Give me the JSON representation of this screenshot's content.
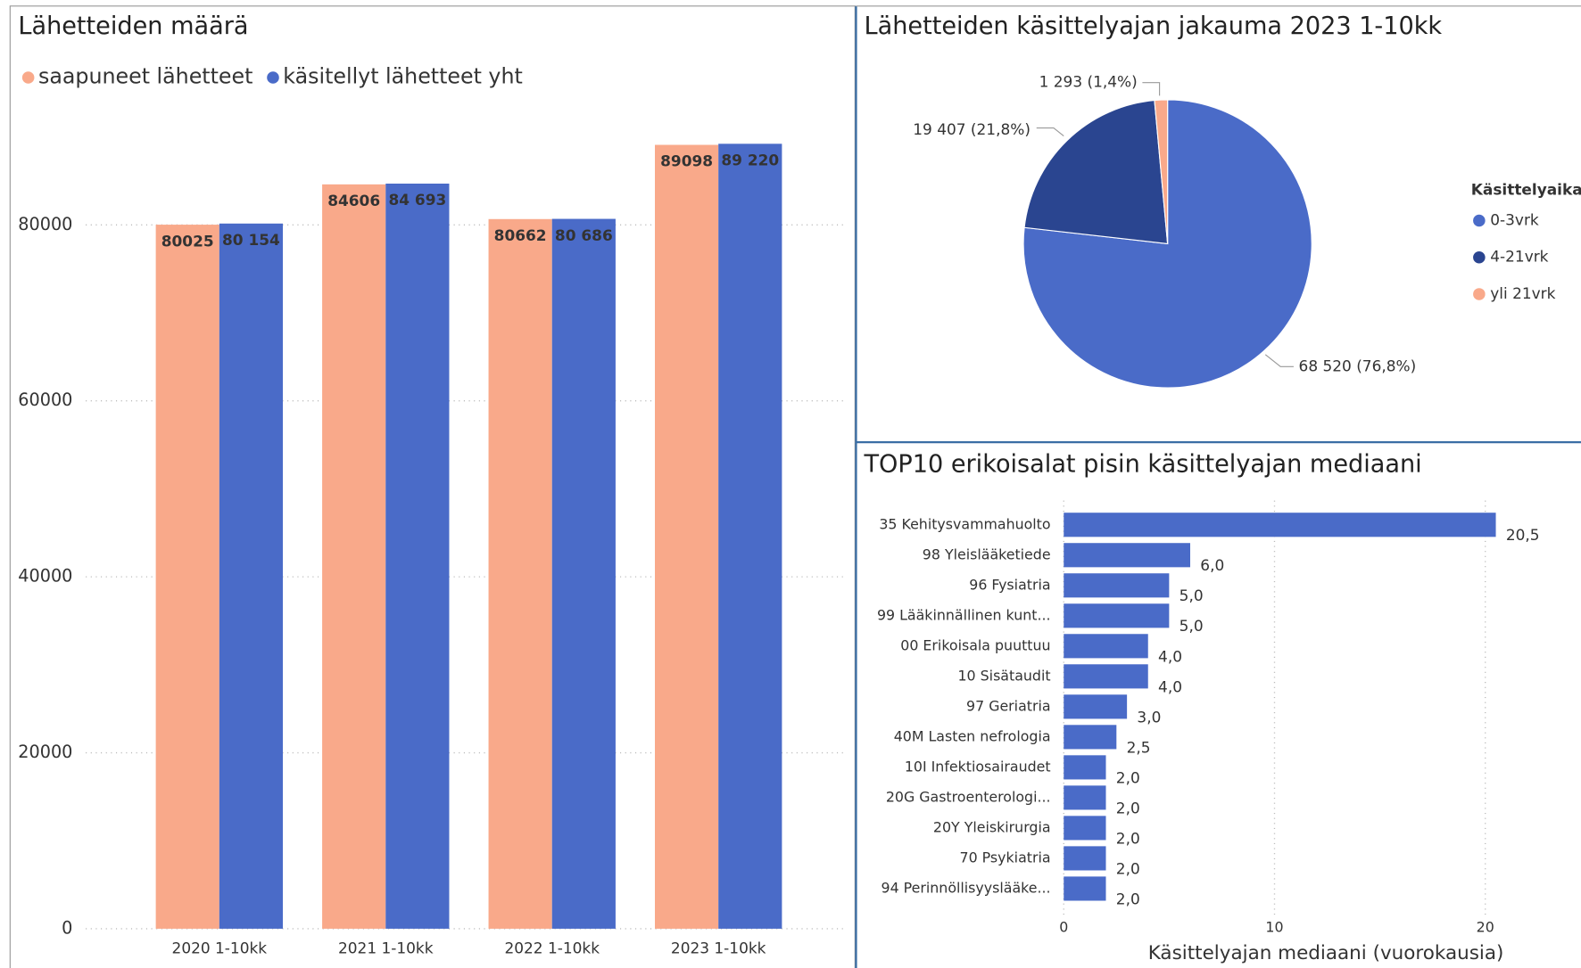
{
  "chart_data": [
    {
      "type": "bar",
      "title": "Lähetteiden määrä",
      "categories": [
        "2020 1-10kk",
        "2021 1-10kk",
        "2022 1-10kk",
        "2023 1-10kk"
      ],
      "series": [
        {
          "name": "saapuneet lähetteet",
          "color": "#f9a98a",
          "values": [
            80025,
            84606,
            80662,
            89098
          ]
        },
        {
          "name": "käsitellyt lähetteet yht",
          "color": "#4a6bc8",
          "values": [
            80154,
            84693,
            80686,
            89220
          ],
          "value_labels": [
            "80 154",
            "84 693",
            "80 686",
            "89 220"
          ]
        }
      ],
      "ylim": [
        0,
        94000
      ],
      "yticks": [
        0,
        20000,
        40000,
        60000,
        80000
      ],
      "grid": true,
      "legend": "top"
    },
    {
      "type": "pie",
      "title": "Lähetteiden käsittelyajan jakauma 2023 1-10kk",
      "legend_title": "Käsittelyaika",
      "categories": [
        "0-3vrk",
        "4-21vrk",
        "yli 21vrk"
      ],
      "values": [
        68520,
        19407,
        1293
      ],
      "value_labels": [
        "68 520 (76,8%)",
        "19 407 (21,8%)",
        "1 293 (1,4%)"
      ],
      "colors": [
        "#4a6bc8",
        "#2a4590",
        "#f9a98a"
      ],
      "legend": "right"
    },
    {
      "type": "hbar",
      "title": "TOP10 erikoisalat pisin käsittelyajan mediaani",
      "xlabel": "Käsittelyajan mediaani (vuorokausia)",
      "categories": [
        "35 Kehitysvammahuolto",
        "98 Yleislääketiede",
        "96 Fysiatria",
        "99 Lääkinnällinen kunt...",
        "00 Erikoisala puuttuu",
        "10 Sisätaudit",
        "97 Geriatria",
        "40M Lasten nefrologia",
        "10I Infektiosairaudet",
        "20G Gastroenterologi...",
        "20Y Yleiskirurgia",
        "70 Psykiatria",
        "94 Perinnöllisyyslääke..."
      ],
      "values": [
        20.5,
        6,
        5,
        5,
        4,
        4,
        3,
        2.5,
        2,
        2,
        2,
        2,
        2
      ],
      "value_labels": [
        "20,5",
        "6,0",
        "5,0",
        "5,0",
        "4,0",
        "4,0",
        "3,0",
        "2,5",
        "2,0",
        "2,0",
        "2,0",
        "2,0",
        "2,0"
      ],
      "color": "#4a6bc8",
      "xlim": [
        0,
        21
      ],
      "xticks": [
        0,
        10,
        20
      ],
      "grid": true
    }
  ]
}
